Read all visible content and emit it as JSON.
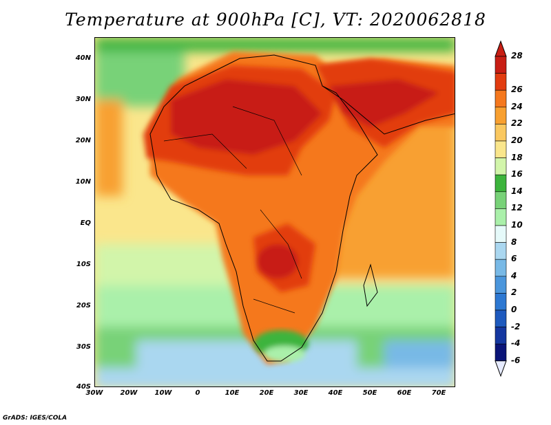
{
  "title": "Temperature at 900hPa [C], VT: 2020062818",
  "credit": "GrADS: IGES/COLA",
  "y_axis_labels": [
    "40N",
    "30N",
    "20N",
    "10N",
    "EQ",
    "10S",
    "20S",
    "30S",
    "40S"
  ],
  "x_axis_labels": [
    "30W",
    "20W",
    "10W",
    "0",
    "10E",
    "20E",
    "30E",
    "40E",
    "50E",
    "60E",
    "70E"
  ],
  "colorbar": {
    "labels": [
      "28",
      "26",
      "24",
      "22",
      "20",
      "18",
      "16",
      "14",
      "12",
      "10",
      "8",
      "6",
      "4",
      "2",
      "0",
      "-2",
      "-4",
      "-6"
    ],
    "colors": [
      "#c81e14",
      "#e23c10",
      "#f5781e",
      "#f8a030",
      "#fac860",
      "#fae68c",
      "#d2f5aa",
      "#3cb43c",
      "#78d278",
      "#aaf0aa",
      "#e6fafa",
      "#aad7f0",
      "#78b9e6",
      "#4b96dc",
      "#2d78d2",
      "#1e5abe",
      "#1437a0",
      "#0a1478"
    ],
    "over_color": "#c81e14",
    "under_color": "#e6ebff"
  },
  "map": {
    "lon_range": [
      -30,
      75
    ],
    "lat_range": [
      -40,
      45
    ],
    "ocean_color": "#fae68c",
    "land_color": "#f5781e"
  }
}
